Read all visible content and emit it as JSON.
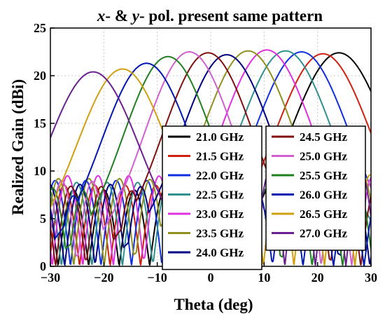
{
  "chart_data": {
    "type": "line",
    "title": {
      "x_italic": "x",
      "mid": "- & ",
      "y_italic": "y",
      "rest": "- pol. present same pattern"
    },
    "xlabel": "Theta (deg)",
    "ylabel": "Realized Gain (dBi)",
    "xlim": [
      -30,
      30
    ],
    "ylim": [
      0,
      25
    ],
    "xticks": [
      -30,
      -20,
      -10,
      0,
      10,
      20,
      30
    ],
    "xtick_labels": [
      "−30",
      "−20",
      "−10",
      "0",
      "10",
      "20",
      "30"
    ],
    "yticks": [
      0,
      5,
      10,
      15,
      20,
      25
    ],
    "ytick_labels": [
      "0",
      "5",
      "10",
      "15",
      "20",
      "25"
    ],
    "grid": true,
    "legend_placement": "lower-center, two columns",
    "series": [
      {
        "name": "21.0 GHz",
        "color": "#000000",
        "peak_theta": 24,
        "peak_gain": 22.4,
        "width": 9.5,
        "sidelobe": 8.0
      },
      {
        "name": "21.5 GHz",
        "color": "#d02010",
        "peak_theta": 21,
        "peak_gain": 22.3,
        "width": 9.3,
        "sidelobe": 8.5
      },
      {
        "name": "22.0 GHz",
        "color": "#1030e0",
        "peak_theta": 17,
        "peak_gain": 22.5,
        "width": 9.2,
        "sidelobe": 9.0
      },
      {
        "name": "22.5 GHz",
        "color": "#309090",
        "peak_theta": 14,
        "peak_gain": 22.6,
        "width": 9.1,
        "sidelobe": 8.8
      },
      {
        "name": "23.0 GHz",
        "color": "#e030e0",
        "peak_theta": 10.5,
        "peak_gain": 22.7,
        "width": 9.0,
        "sidelobe": 9.5
      },
      {
        "name": "23.5 GHz",
        "color": "#909020",
        "peak_theta": 7,
        "peak_gain": 22.6,
        "width": 8.9,
        "sidelobe": 9.2
      },
      {
        "name": "24.0 GHz",
        "color": "#000080",
        "peak_theta": 3,
        "peak_gain": 22.2,
        "width": 8.8,
        "sidelobe": 8.6
      },
      {
        "name": "24.5 GHz",
        "color": "#801010",
        "peak_theta": -0.5,
        "peak_gain": 22.4,
        "width": 8.7,
        "sidelobe": 8.4
      },
      {
        "name": "25.0 GHz",
        "color": "#d060d0",
        "peak_theta": -4,
        "peak_gain": 22.5,
        "width": 8.6,
        "sidelobe": 9.0
      },
      {
        "name": "25.5 GHz",
        "color": "#208020",
        "peak_theta": -8,
        "peak_gain": 22.0,
        "width": 8.6,
        "sidelobe": 8.2
      },
      {
        "name": "26.0 GHz",
        "color": "#0018b0",
        "peak_theta": -12,
        "peak_gain": 21.3,
        "width": 8.6,
        "sidelobe": 8.0
      },
      {
        "name": "26.5 GHz",
        "color": "#d0a010",
        "peak_theta": -16.5,
        "peak_gain": 20.7,
        "width": 8.7,
        "sidelobe": 9.6
      },
      {
        "name": "27.0 GHz",
        "color": "#6a2090",
        "peak_theta": -22,
        "peak_gain": 20.4,
        "width": 8.8,
        "sidelobe": 9.8
      }
    ]
  }
}
